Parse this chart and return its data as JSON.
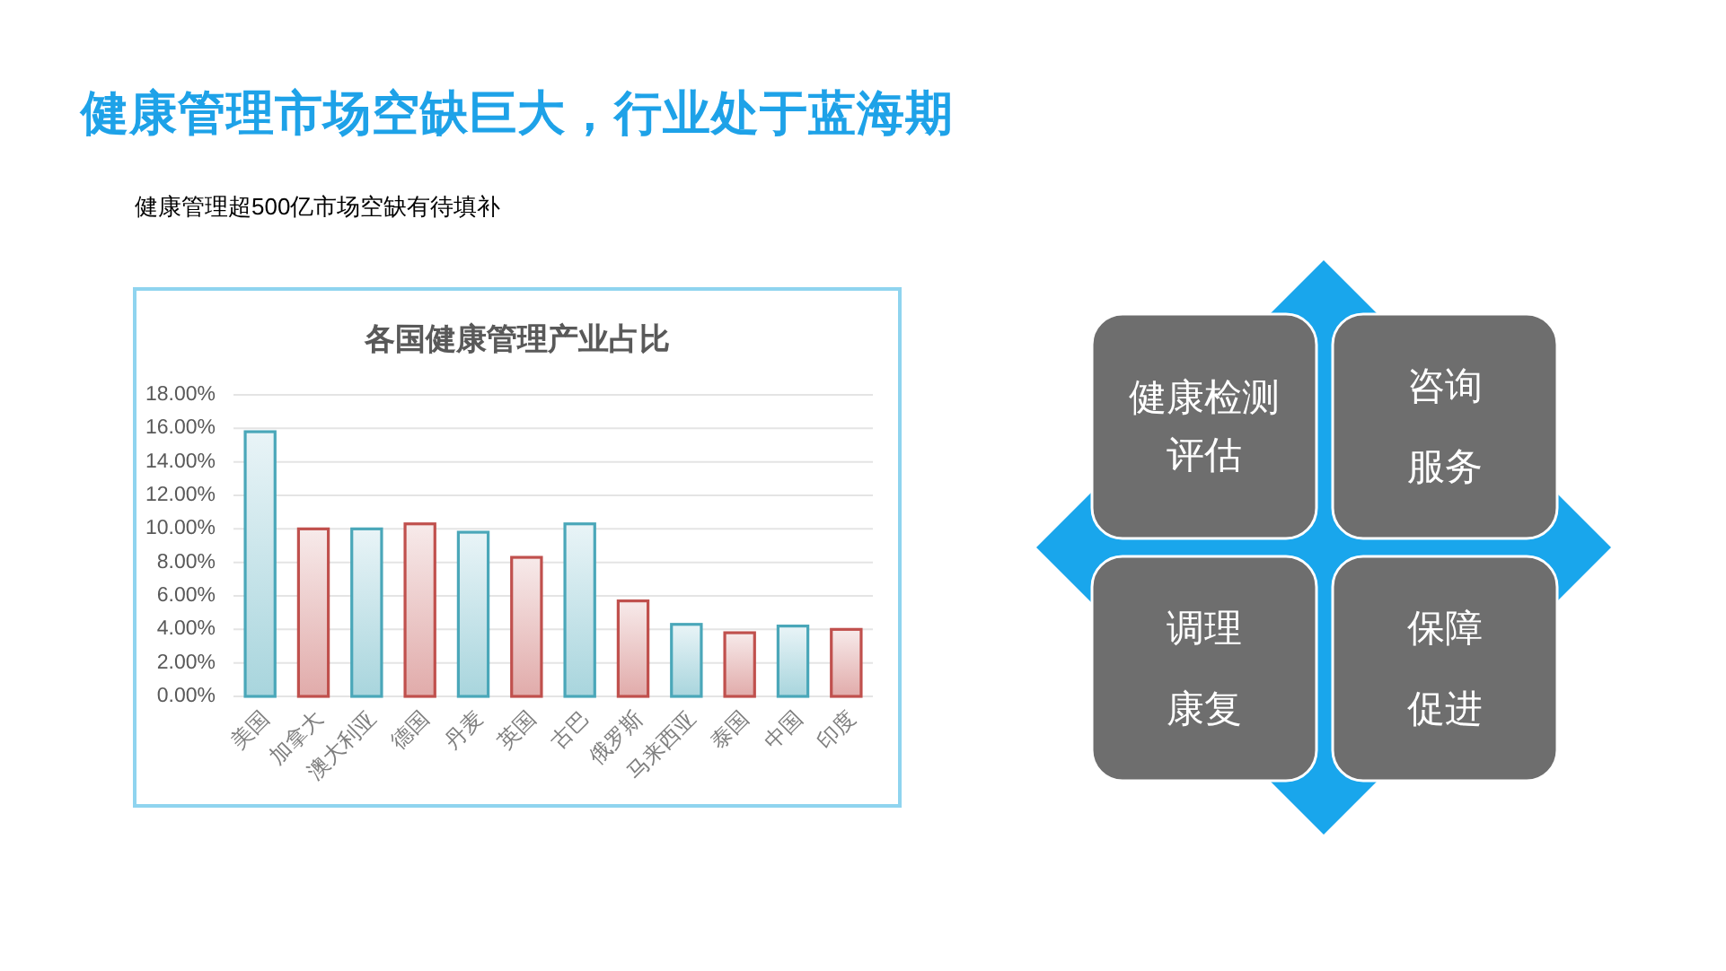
{
  "chart_data": [
    {
      "type": "bar",
      "title": "各国健康管理产业占比",
      "annotations": [
        "健康管理市场空缺巨大，行业处于蓝海期",
        "健康管理超500亿市场空缺有待填补"
      ],
      "categories": [
        "美国",
        "加拿大",
        "澳大利亚",
        "德国",
        "丹麦",
        "英国",
        "古巴",
        "俄罗斯",
        "马来西亚",
        "泰国",
        "中国",
        "印度"
      ],
      "values": [
        15.8,
        10.0,
        10.0,
        10.3,
        9.8,
        8.3,
        10.3,
        5.7,
        4.3,
        3.8,
        4.2,
        4.0
      ],
      "colors": [
        "#4aa7b9",
        "#c0504d",
        "#4aa7b9",
        "#c0504d",
        "#4aa7b9",
        "#c0504d",
        "#4aa7b9",
        "#c0504d",
        "#4aa7b9",
        "#c0504d",
        "#4aa7b9",
        "#c0504d"
      ],
      "ylim": [
        0,
        18
      ],
      "yticks": [
        {
          "value": 0,
          "label": "0.00%"
        },
        {
          "value": 2,
          "label": "2.00%"
        },
        {
          "value": 4,
          "label": "4.00%"
        },
        {
          "value": 6,
          "label": "6.00%"
        },
        {
          "value": 8,
          "label": "8.00%"
        },
        {
          "value": 10,
          "label": "10.00%"
        },
        {
          "value": 12,
          "label": "12.00%"
        },
        {
          "value": 14,
          "label": "14.00%"
        },
        {
          "value": 16,
          "label": "16.00%"
        },
        {
          "value": 18,
          "label": "18.00%"
        }
      ],
      "grid": "y"
    },
    {
      "type": "other",
      "annotations": [
        "健康检测评估",
        "咨询服务",
        "调理康复",
        "保障促进"
      ]
    }
  ]
}
